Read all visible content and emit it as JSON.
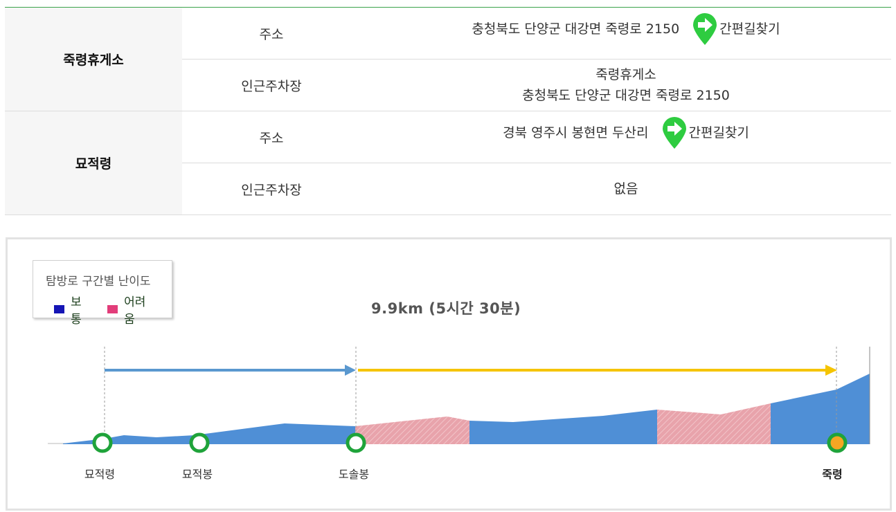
{
  "table": {
    "rows": [
      {
        "place": "죽령휴게소",
        "label": "주소",
        "value": "충청북도 단양군 대강면 죽령로 2150",
        "nav": "간편길찾기"
      },
      {
        "label": "인근주차장",
        "value_line1": "죽령휴게소",
        "value_line2": "충청북도 단양군 대강면 죽령로 2150"
      },
      {
        "place": "묘적령",
        "label": "주소",
        "value": "경북 영주시 봉현면 두산리",
        "nav": "간편길찾기"
      },
      {
        "label": "인근주차장",
        "value": "없음"
      }
    ]
  },
  "legend": {
    "title": "탐방로 구간별 난이도",
    "items": [
      {
        "label": "보통",
        "color": "#1515b5"
      },
      {
        "label": "어려움",
        "color": "#e23d7a"
      }
    ]
  },
  "total": "9.9km (5시간 30분)",
  "colors": {
    "normal_fill": "#4f8fd6",
    "hard_fill": "#e8a3ab",
    "arrow_blue": "#5a98cf",
    "arrow_yellow": "#f5c400",
    "marker_green": "#1fa33a",
    "marker_end": "#f5a623",
    "nav_green": "#2ecc40"
  },
  "waypoints": [
    {
      "name": "묘적령"
    },
    {
      "name": "묘적봉"
    },
    {
      "name": "도솔봉"
    },
    {
      "name": "죽령"
    }
  ],
  "icons": {
    "nav": "map-pin-arrow-icon"
  }
}
